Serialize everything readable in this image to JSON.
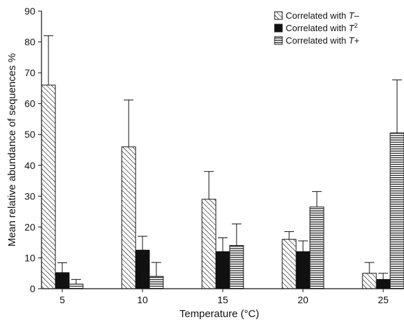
{
  "chart_data": {
    "type": "bar",
    "xlabel": "Temperature (°C)",
    "ylabel": "Mean relative abundance of sequences %",
    "categories": [
      "5",
      "10",
      "15",
      "20",
      "25"
    ],
    "ylim": [
      0,
      90
    ],
    "yticks": [
      "0",
      "10",
      "20",
      "30",
      "40",
      "50",
      "60",
      "70",
      "80",
      "90"
    ],
    "series": [
      {
        "name_main": "Correlated with ",
        "name_italic": "T",
        "name_suffix": "–",
        "pattern": "diagonal-hatch",
        "values": [
          66,
          46,
          29,
          16,
          5
        ],
        "errors": [
          16,
          15.2,
          9,
          2.5,
          3.5
        ]
      },
      {
        "name_main": "Correlated with ",
        "name_italic": "T",
        "name_suffix": "2",
        "pattern": "solid-black",
        "values": [
          5.2,
          12.5,
          12,
          12,
          3
        ],
        "errors": [
          3.2,
          4.5,
          4.5,
          3.5,
          2
        ]
      },
      {
        "name_main": "Correlated with ",
        "name_italic": "T",
        "name_suffix": "+",
        "pattern": "horizontal-lines",
        "values": [
          1.5,
          4,
          14,
          26.5,
          50.5
        ],
        "errors": [
          1.5,
          4.5,
          7,
          5,
          17.2
        ]
      }
    ],
    "legend_position": "top-right",
    "grid": false
  }
}
